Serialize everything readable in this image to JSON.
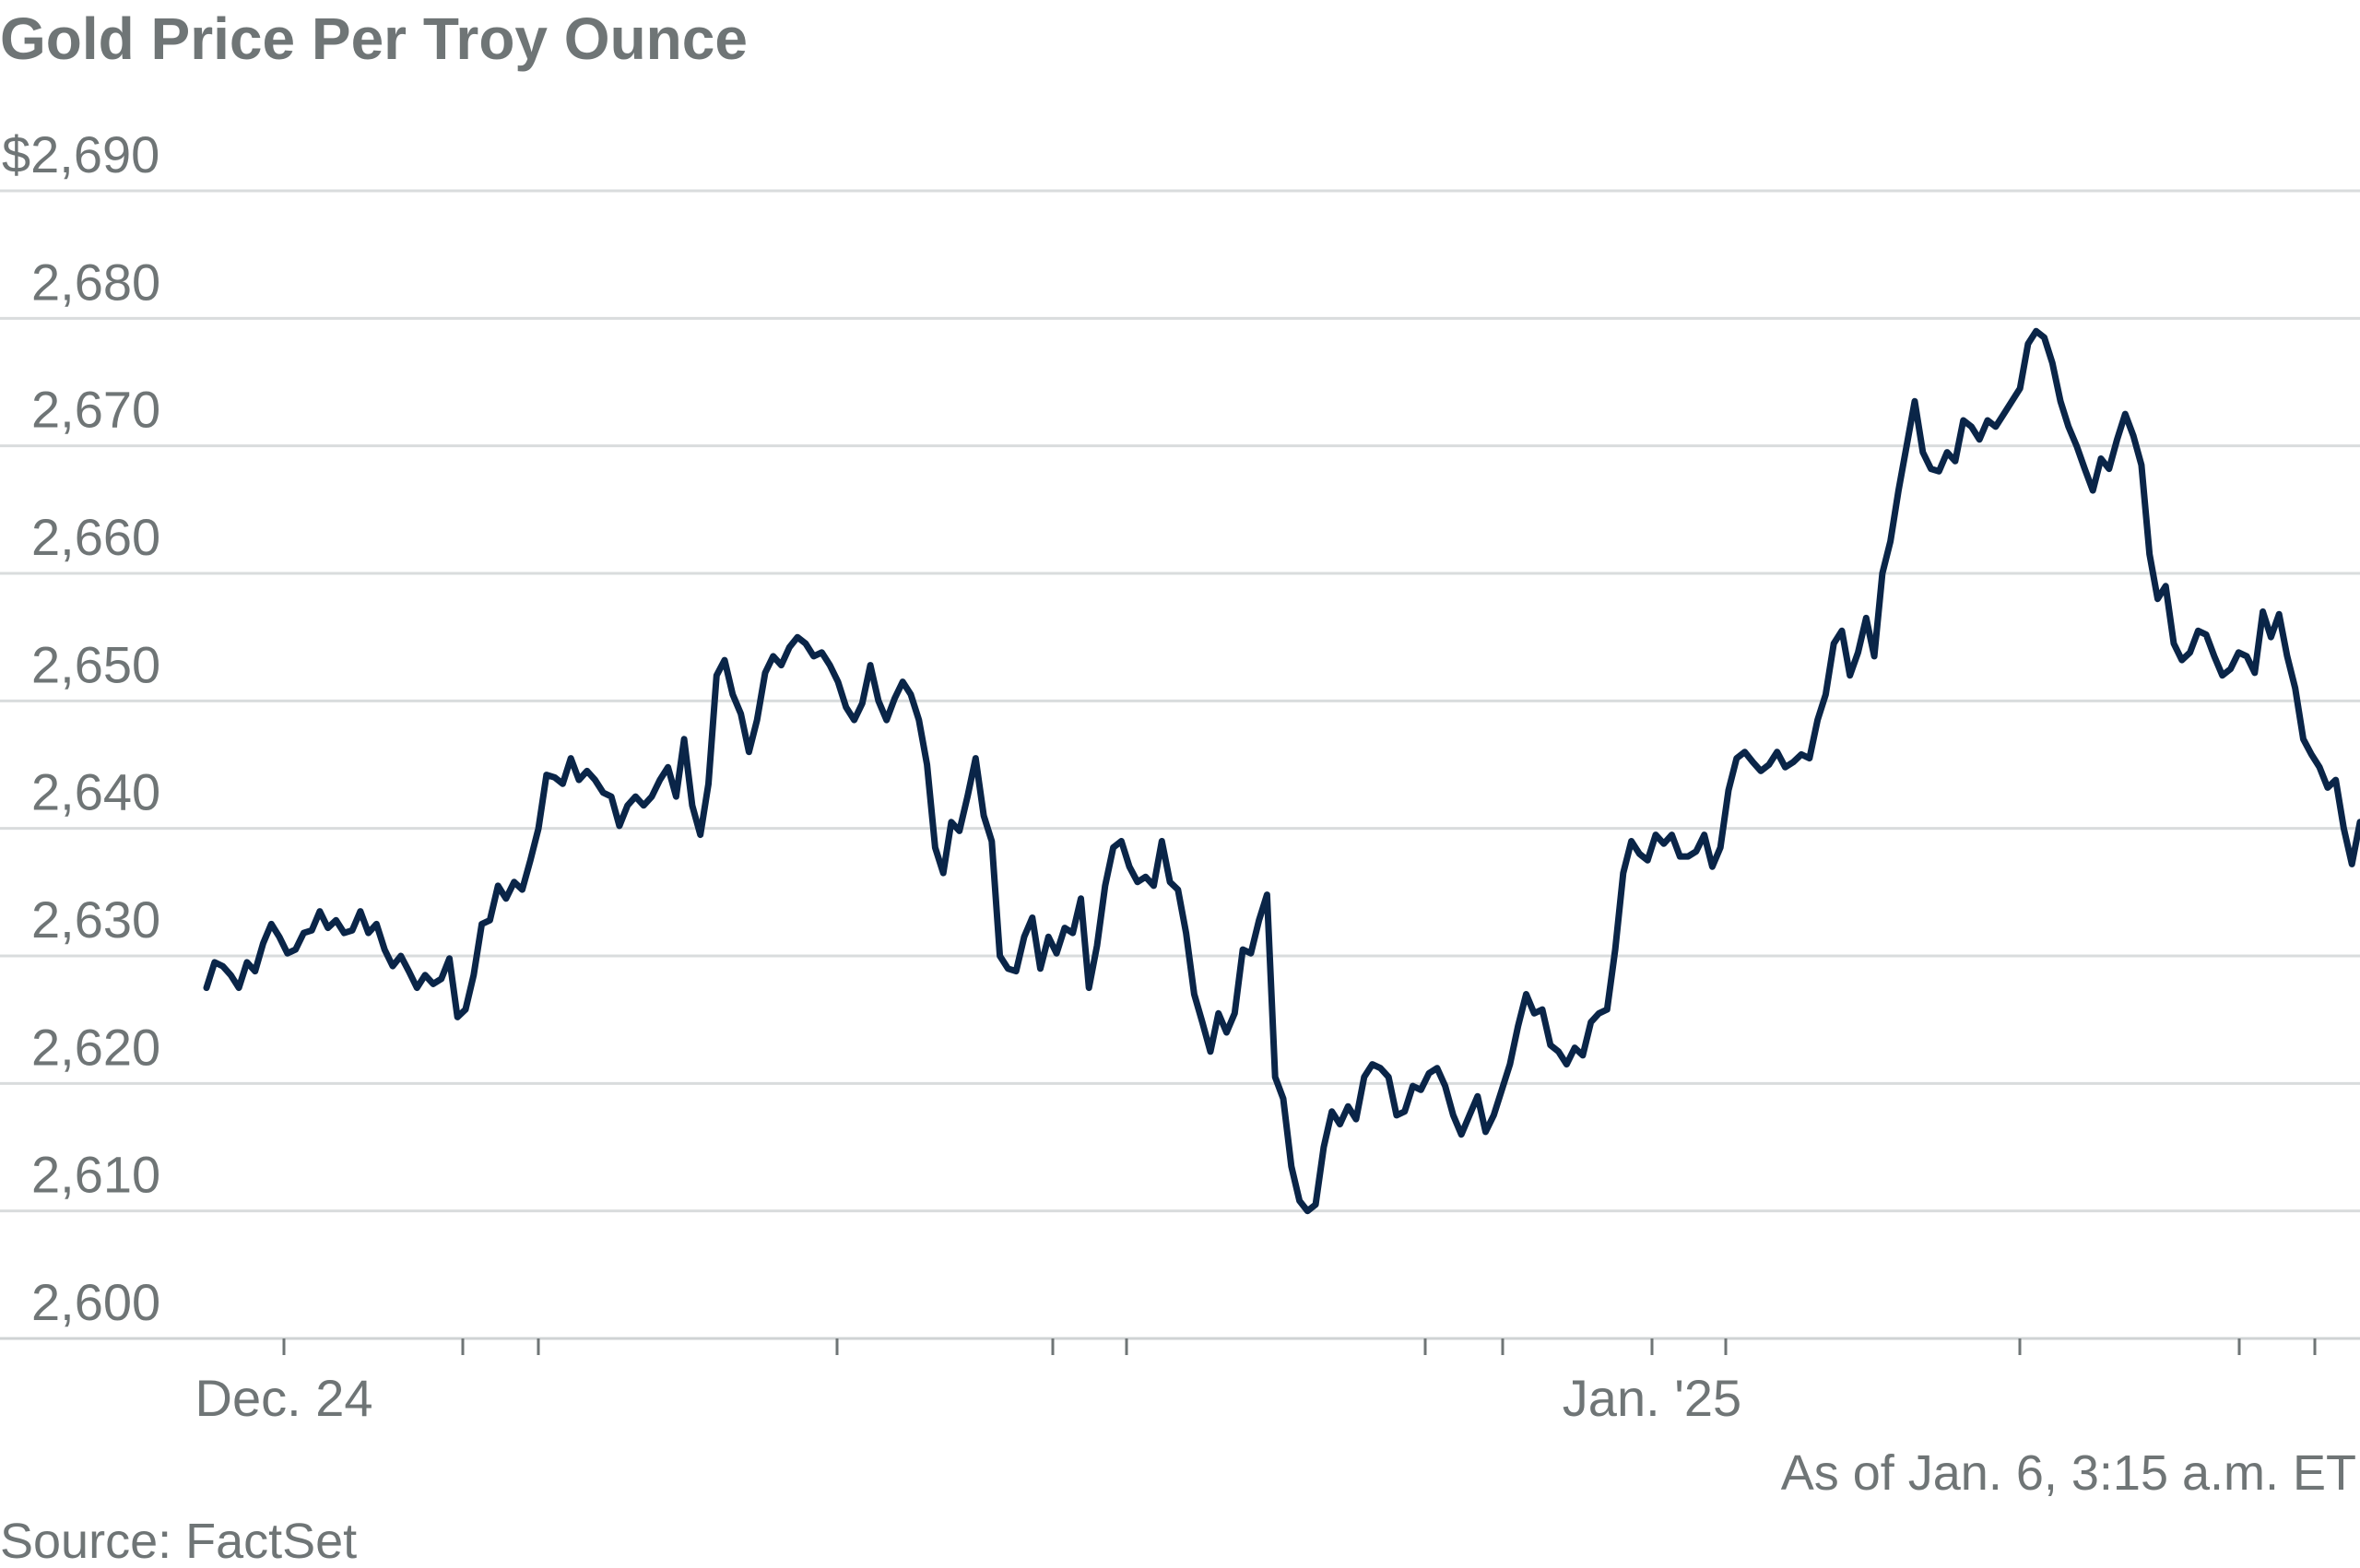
{
  "chart_data": {
    "type": "line",
    "title": "Gold Price Per Troy Ounce",
    "xlabel": "",
    "ylabel": "",
    "ylim": [
      2600,
      2690
    ],
    "y_ticks": [
      {
        "value": 2690,
        "label": "$2,690"
      },
      {
        "value": 2680,
        "label": "2,680"
      },
      {
        "value": 2670,
        "label": "2,670"
      },
      {
        "value": 2660,
        "label": "2,660"
      },
      {
        "value": 2650,
        "label": "2,650"
      },
      {
        "value": 2640,
        "label": "2,640"
      },
      {
        "value": 2630,
        "label": "2,630"
      },
      {
        "value": 2620,
        "label": "2,620"
      },
      {
        "value": 2610,
        "label": "2,610"
      },
      {
        "value": 2600,
        "label": "2,600"
      }
    ],
    "x_start": "Dec 23, 2024",
    "x_end": "Jan 6, 2025 03:15",
    "x_ticks": [
      {
        "x": "Dec 24",
        "label": "Dec. 24"
      },
      {
        "x": "Dec 25",
        "label": ""
      },
      {
        "x": "Dec 26",
        "label": ""
      },
      {
        "x": "Dec 27",
        "label": ""
      },
      {
        "x": "Dec 30",
        "label": ""
      },
      {
        "x": "Dec 31",
        "label": ""
      },
      {
        "x": "Jan 1",
        "label": ""
      },
      {
        "x": "Jan 1 (late)",
        "label": ""
      },
      {
        "x": "Jan 2",
        "label": "Jan. '25"
      },
      {
        "x": "Jan 3",
        "label": ""
      },
      {
        "x": "Jan 3 (late)",
        "label": ""
      },
      {
        "x": "Jan 5",
        "label": ""
      },
      {
        "x": "Jan 6",
        "label": ""
      }
    ],
    "series": [
      {
        "name": "",
        "color": "#0a2548",
        "values": [
          2627.5,
          2629.5,
          2629.2,
          2628.5,
          2627.5,
          2629.5,
          2628.8,
          2631,
          2632.5,
          2631.5,
          2630.2,
          2630.5,
          2631.8,
          2632,
          2633.5,
          2632.2,
          2632.8,
          2631.8,
          2632,
          2633.5,
          2631.8,
          2632.5,
          2630.5,
          2629.2,
          2630,
          2628.8,
          2627.5,
          2628.5,
          2627.8,
          2628.2,
          2629.8,
          2625.2,
          2625.8,
          2628.5,
          2632.5,
          2632.8,
          2635.5,
          2634.5,
          2635.8,
          2635.2,
          2637.5,
          2640,
          2644.2,
          2644,
          2643.5,
          2645.5,
          2643.8,
          2644.5,
          2643.8,
          2642.8,
          2642.5,
          2640.2,
          2641.8,
          2642.5,
          2641.8,
          2642.5,
          2643.8,
          2644.8,
          2642.5,
          2647,
          2641.8,
          2639.5,
          2643.5,
          2652,
          2653.2,
          2650.5,
          2649,
          2646,
          2648.5,
          2652.2,
          2653.5,
          2652.8,
          2654.2,
          2655,
          2654.5,
          2653.5,
          2653.8,
          2652.8,
          2651.5,
          2649.5,
          2648.5,
          2649.8,
          2652.8,
          2650,
          2648.5,
          2650.2,
          2651.5,
          2650.5,
          2648.5,
          2645,
          2638.5,
          2636.5,
          2640.5,
          2639.8,
          2642.5,
          2645.5,
          2641,
          2639,
          2630,
          2629,
          2628.8,
          2631.5,
          2633,
          2629,
          2631.5,
          2630.2,
          2632.2,
          2631.8,
          2634.5,
          2627.5,
          2630.8,
          2635.5,
          2638.5,
          2639,
          2637,
          2635.8,
          2636.2,
          2635.5,
          2639,
          2635.8,
          2635.2,
          2631.8,
          2627,
          2624.8,
          2622.5,
          2625.5,
          2624,
          2625.5,
          2630.5,
          2630.2,
          2632.8,
          2634.8,
          2620.5,
          2618.8,
          2613.5,
          2610.8,
          2610,
          2610.5,
          2615,
          2617.8,
          2616.8,
          2618.2,
          2617.2,
          2620.5,
          2621.5,
          2621.2,
          2620.5,
          2617.5,
          2617.8,
          2619.8,
          2619.5,
          2620.8,
          2621.2,
          2619.8,
          2617.5,
          2616,
          2617.5,
          2619,
          2616.2,
          2617.5,
          2619.5,
          2621.5,
          2624.5,
          2627,
          2625.5,
          2625.8,
          2623,
          2622.5,
          2621.5,
          2622.8,
          2622.2,
          2624.8,
          2625.5,
          2625.8,
          2630.5,
          2636.5,
          2639,
          2638,
          2637.5,
          2639.5,
          2638.8,
          2639.5,
          2637.8,
          2637.8,
          2638.2,
          2639.5,
          2637,
          2638.5,
          2643,
          2645.5,
          2646,
          2645.2,
          2644.5,
          2645,
          2646,
          2644.8,
          2645.2,
          2645.8,
          2645.5,
          2648.5,
          2650.5,
          2654.5,
          2655.5,
          2652,
          2653.8,
          2656.5,
          2653.5,
          2660,
          2662.5,
          2666.5,
          2670,
          2673.5,
          2669.5,
          2668.2,
          2668,
          2669.5,
          2668.8,
          2672,
          2671.5,
          2670.5,
          2672,
          2671.5,
          2672.5,
          2673.5,
          2674.5,
          2678,
          2679,
          2678.5,
          2676.5,
          2673.5,
          2671.5,
          2670,
          2668.2,
          2666.5,
          2669,
          2668.2,
          2670.5,
          2672.5,
          2670.8,
          2668.5,
          2661.5,
          2658,
          2659,
          2654.5,
          2653.2,
          2653.8,
          2655.5,
          2655.2,
          2653.5,
          2652,
          2652.5,
          2653.8,
          2653.5,
          2652.2,
          2657,
          2655,
          2656.8,
          2653.5,
          2651,
          2647,
          2645.8,
          2644.8,
          2643.2,
          2643.8,
          2640,
          2637.2,
          2640.5
        ]
      }
    ],
    "annotations": [
      "As of Jan. 6, 3:15 a.m. ET"
    ],
    "source": "Source: FactSet",
    "grid": true,
    "legend": "none"
  },
  "colors": {
    "line": "#0a2548",
    "text": "#6f7576",
    "grid": "#d9dcdd"
  }
}
